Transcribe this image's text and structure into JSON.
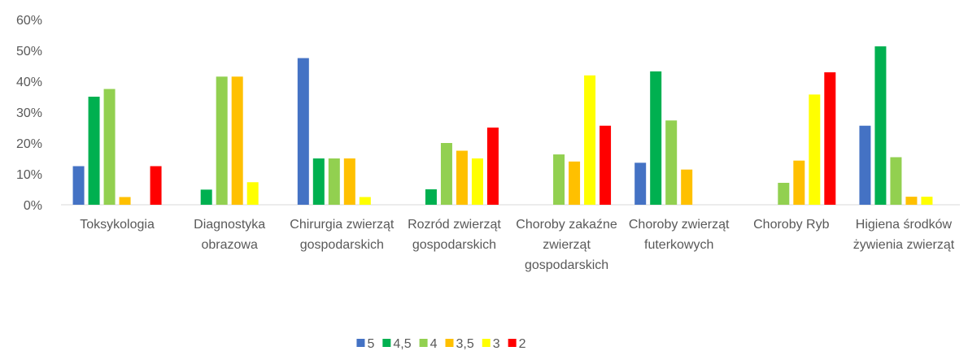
{
  "chart_data": {
    "type": "bar",
    "categories": [
      "Toksykologia",
      "Diagnostyka obrazowa",
      "Chirurgia zwierząt gospodarskich",
      "Rozród zwierząt gospodarskich",
      "Choroby zakaźne zwierząt gospodarskich",
      "Choroby zwierząt futerkowych",
      "Choroby Ryb",
      "Higiena środków żywienia zwierząt"
    ],
    "series": [
      {
        "name": "5",
        "color": "#4472c4",
        "values": [
          12.5,
          0,
          47.5,
          0,
          0,
          13.6,
          0,
          25.6
        ]
      },
      {
        "name": "4,5",
        "color": "#00b050",
        "values": [
          35,
          4.9,
          15,
          5,
          0,
          43.2,
          0,
          51.3
        ]
      },
      {
        "name": "4",
        "color": "#92d050",
        "values": [
          37.5,
          41.5,
          15,
          20,
          16.3,
          27.3,
          7.1,
          15.4
        ]
      },
      {
        "name": "3,5",
        "color": "#ffc000",
        "values": [
          2.5,
          41.5,
          15,
          17.5,
          14,
          11.4,
          14.3,
          2.6
        ]
      },
      {
        "name": "3",
        "color": "#ffff00",
        "values": [
          0,
          7.3,
          2.5,
          15,
          41.9,
          0,
          35.7,
          2.6
        ]
      },
      {
        "name": "2",
        "color": "#ff0000",
        "values": [
          12.5,
          0,
          0,
          25,
          25.6,
          0,
          42.9,
          0
        ]
      }
    ],
    "ylim": [
      0,
      60
    ],
    "yticks": [
      {
        "value": 0,
        "label": "0%"
      },
      {
        "value": 10,
        "label": "10%"
      },
      {
        "value": 20,
        "label": "20%"
      },
      {
        "value": 30,
        "label": "30%"
      },
      {
        "value": 40,
        "label": "40%"
      },
      {
        "value": 50,
        "label": "50%"
      },
      {
        "value": 60,
        "label": "60%"
      }
    ],
    "grid": false,
    "legend": "bottom"
  }
}
